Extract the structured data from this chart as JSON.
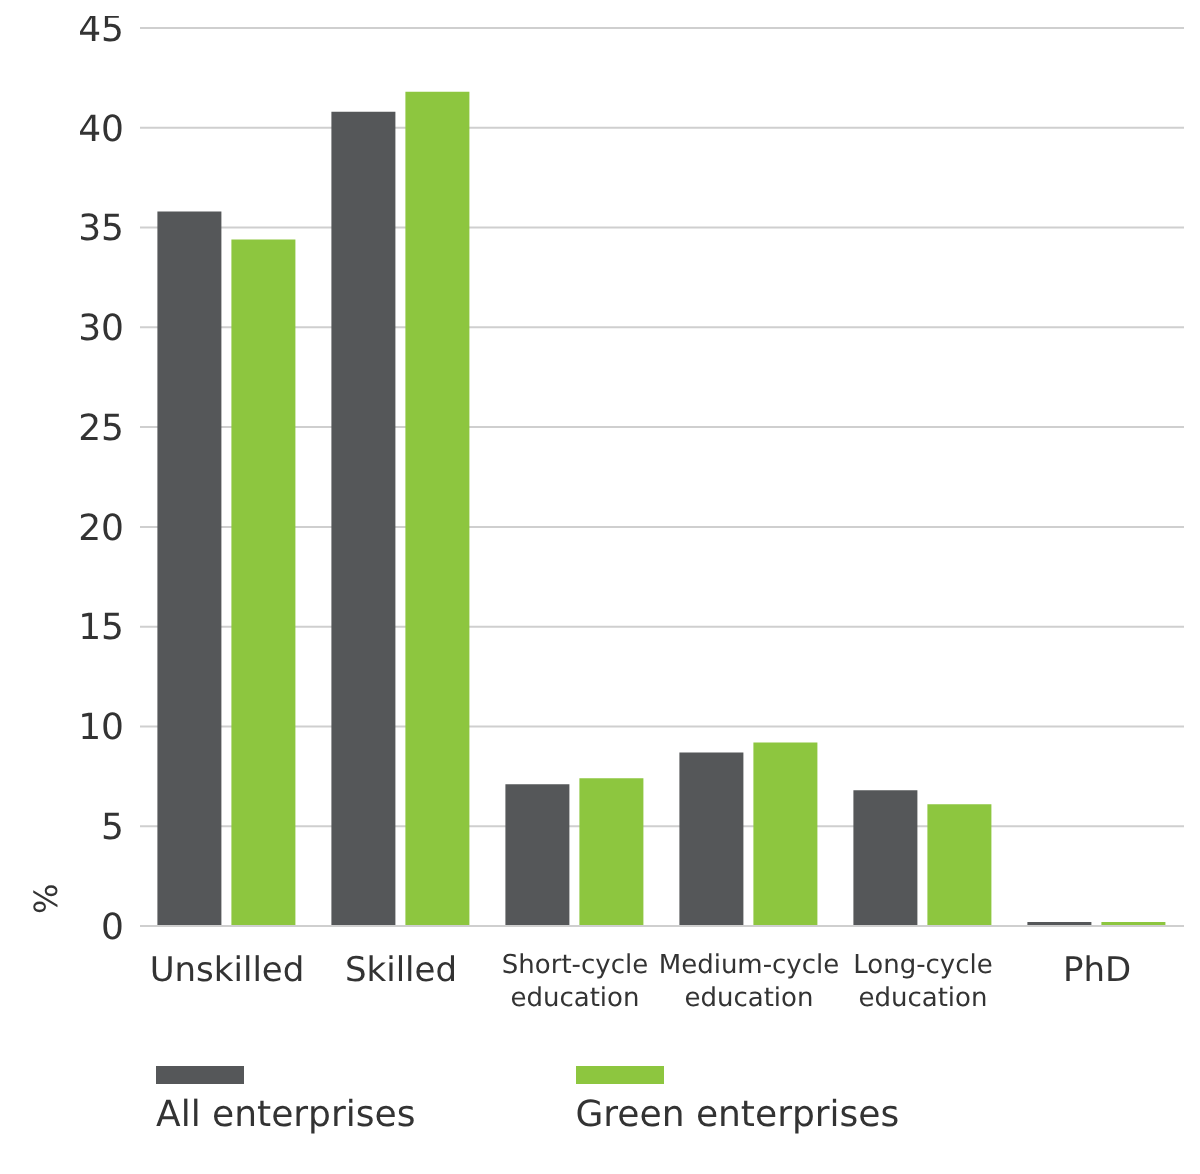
{
  "chart_data": {
    "type": "bar",
    "ylabel": "%",
    "categories": [
      "Unskilled",
      "Skilled",
      "Short-cycle education",
      "Medium-cycle education",
      "Long-cycle education",
      "PhD"
    ],
    "series": [
      {
        "name": "All enterprises",
        "color": "#555759",
        "values": [
          35.8,
          40.8,
          7.1,
          8.7,
          6.8,
          0.2
        ]
      },
      {
        "name": "Green enterprises",
        "color": "#8dc63f",
        "values": [
          34.4,
          41.8,
          7.4,
          9.2,
          6.1,
          0.2
        ]
      }
    ],
    "ylim": [
      0,
      45
    ],
    "yticks": [
      0,
      5,
      10,
      15,
      20,
      25,
      30,
      35,
      40,
      45
    ],
    "grid": "y",
    "legend": "bottom"
  }
}
